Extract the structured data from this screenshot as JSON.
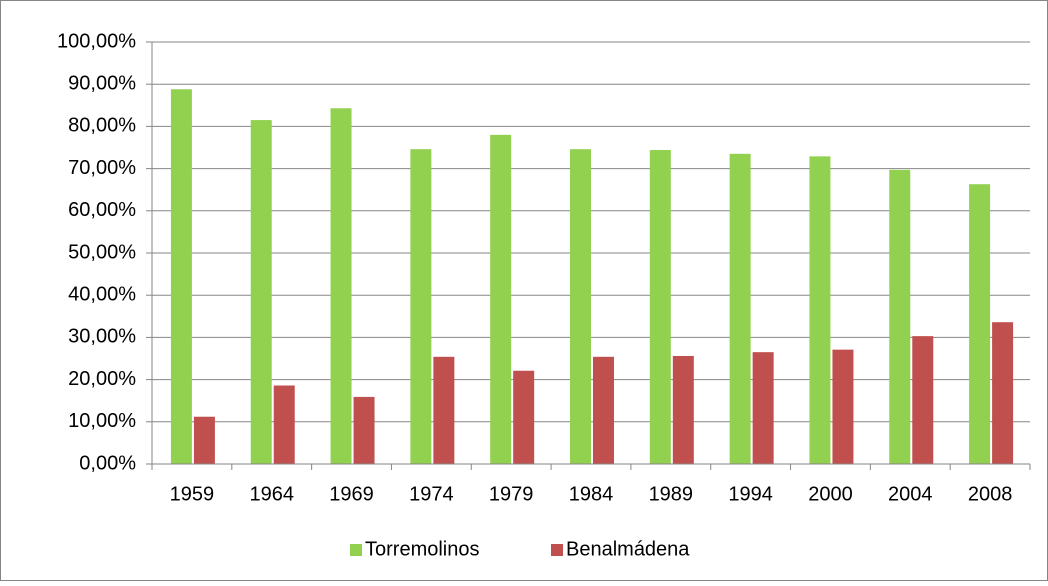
{
  "chart_data": {
    "type": "bar",
    "categories": [
      "1959",
      "1964",
      "1969",
      "1974",
      "1979",
      "1984",
      "1989",
      "1994",
      "2000",
      "2004",
      "2008"
    ],
    "series": [
      {
        "name": "Torremolinos",
        "color": "#92d050",
        "values": [
          88.8,
          81.5,
          84.3,
          74.6,
          78.0,
          74.6,
          74.4,
          73.5,
          72.9,
          69.7,
          66.3
        ]
      },
      {
        "name": "Benalmádena",
        "color": "#c0504d",
        "values": [
          11.2,
          18.6,
          15.9,
          25.4,
          22.1,
          25.4,
          25.6,
          26.5,
          27.1,
          30.3,
          33.6
        ]
      }
    ],
    "ylim": [
      0,
      100
    ],
    "yticks": [
      {
        "value": 0,
        "label": "0,00%"
      },
      {
        "value": 10,
        "label": "10,00%"
      },
      {
        "value": 20,
        "label": "20,00%"
      },
      {
        "value": 30,
        "label": "30,00%"
      },
      {
        "value": 40,
        "label": "40,00%"
      },
      {
        "value": 50,
        "label": "50,00%"
      },
      {
        "value": 60,
        "label": "60,00%"
      },
      {
        "value": 70,
        "label": "70,00%"
      },
      {
        "value": 80,
        "label": "80,00%"
      },
      {
        "value": 90,
        "label": "90,00%"
      },
      {
        "value": 100,
        "label": "100,00%"
      }
    ],
    "grid": true,
    "legend": "bottom"
  }
}
